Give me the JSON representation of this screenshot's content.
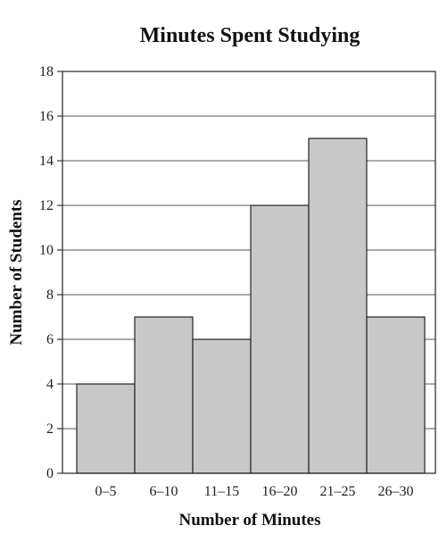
{
  "chart_data": {
    "type": "bar",
    "title": "Minutes Spent Studying",
    "xlabel": "Number of Minutes",
    "ylabel": "Number of Students",
    "categories": [
      "0–5",
      "6–10",
      "11–15",
      "16–20",
      "21–25",
      "26–30"
    ],
    "values": [
      4,
      7,
      6,
      12,
      15,
      7
    ],
    "ylim": [
      0,
      18
    ],
    "yticks": [
      0,
      2,
      4,
      6,
      8,
      10,
      12,
      14,
      16,
      18
    ],
    "grid": true,
    "colors": {
      "bar_fill": "#c8c8c8",
      "bar_stroke": "#222222",
      "grid": "#555555",
      "frame": "#222222"
    }
  }
}
